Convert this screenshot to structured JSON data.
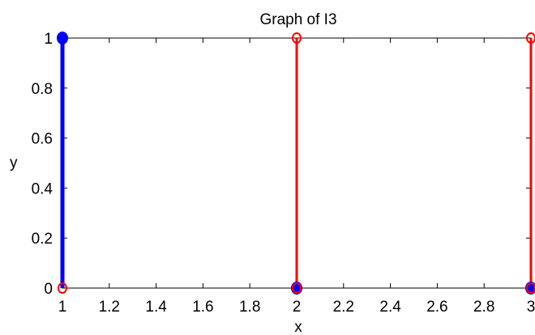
{
  "chart_data": {
    "type": "stem",
    "title": "Graph of I3",
    "xlabel": "x",
    "ylabel": "y",
    "xlim": [
      1,
      3
    ],
    "ylim": [
      0,
      1
    ],
    "xticks": [
      "1",
      "1.2",
      "1.4",
      "1.6",
      "1.8",
      "2",
      "2.2",
      "2.4",
      "2.6",
      "2.8",
      "3"
    ],
    "yticks": [
      "0",
      "0.2",
      "0.4",
      "0.6",
      "0.8",
      "1"
    ],
    "grid": false,
    "series": [
      {
        "color": "#0000ff",
        "segments": [
          {
            "x": 1,
            "y": [
              0,
              1
            ]
          }
        ],
        "closed_points": [
          {
            "x": 1,
            "y": 1
          },
          {
            "x": 2,
            "y": 0
          },
          {
            "x": 3,
            "y": 0
          }
        ]
      },
      {
        "color": "#ff0000",
        "segments": [
          {
            "x": 2,
            "y": [
              0,
              1
            ]
          },
          {
            "x": 3,
            "y": [
              0,
              1
            ]
          }
        ],
        "open_points": [
          {
            "x": 1,
            "y": 0
          },
          {
            "x": 2,
            "y": 0
          },
          {
            "x": 2,
            "y": 1
          },
          {
            "x": 3,
            "y": 0
          },
          {
            "x": 3,
            "y": 1
          }
        ]
      }
    ]
  }
}
